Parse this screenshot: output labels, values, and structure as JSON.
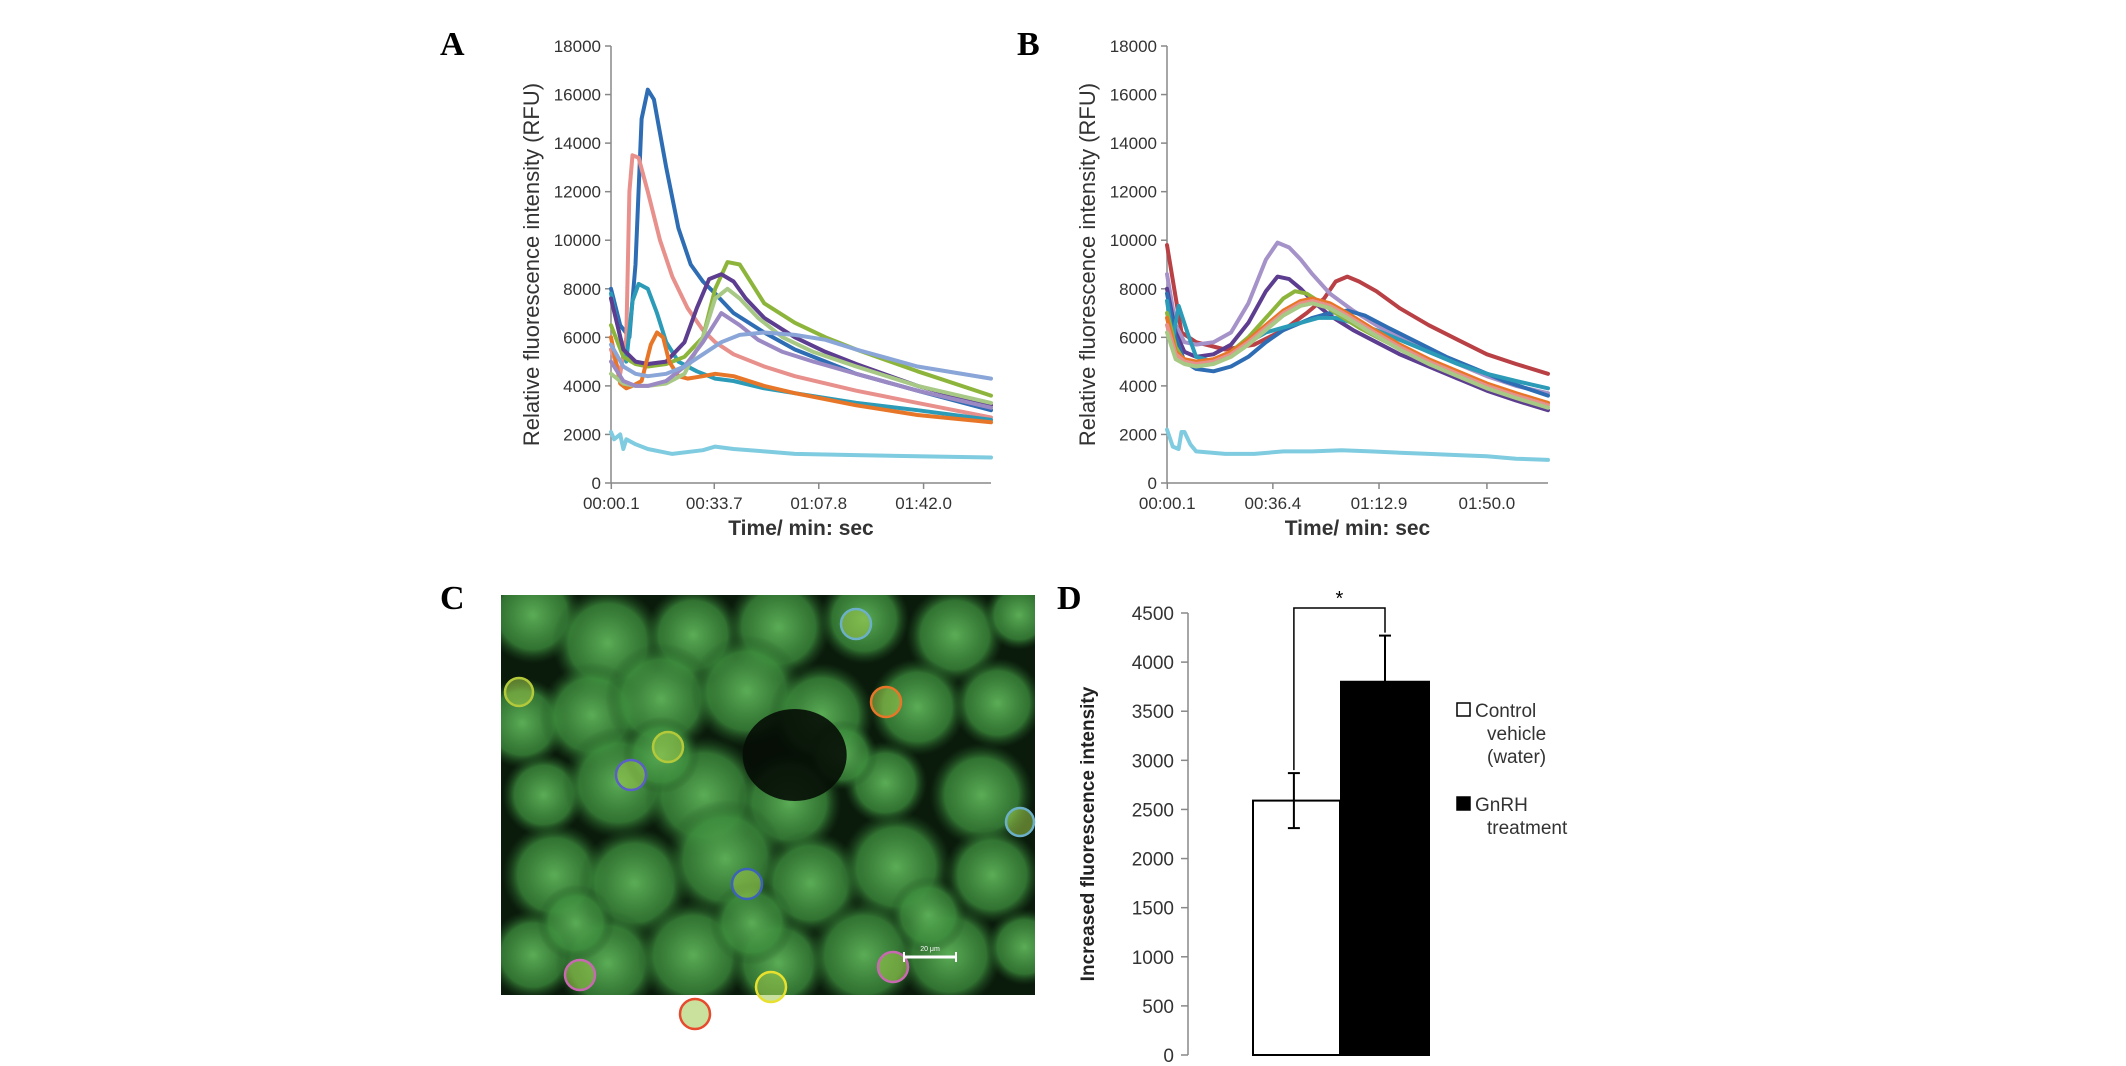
{
  "panels": {
    "a": "A",
    "b": "B",
    "c": "C",
    "d": "D"
  },
  "chart_data": [
    {
      "panel": "A",
      "type": "line",
      "ylabel": "Relative fluorescence intensity (RFU)",
      "xlabel": "Time/ min: sec",
      "ylim": [
        0,
        18000
      ],
      "yticks": [
        0,
        2000,
        4000,
        6000,
        8000,
        10000,
        12000,
        14000,
        16000,
        18000
      ],
      "xlim": [
        0,
        124
      ],
      "xtick_values": [
        0.1,
        33.7,
        67.8,
        102.0
      ],
      "xtick_labels": [
        "00:00.1",
        "00:33.7",
        "01:07.8",
        "01:42.0"
      ],
      "grid": false,
      "series": [
        {
          "color": "#2e6db4",
          "x": [
            0,
            3,
            6,
            8,
            10,
            12,
            14,
            18,
            22,
            26,
            30,
            34,
            40,
            50,
            60,
            70,
            80,
            100,
            124
          ],
          "y": [
            8000,
            6500,
            6000,
            9000,
            15000,
            16200,
            15800,
            13000,
            10500,
            9000,
            8300,
            7800,
            7000,
            6200,
            5500,
            5000,
            4500,
            3800,
            3000
          ]
        },
        {
          "color": "#e8908c",
          "x": [
            0,
            3,
            5,
            6,
            7,
            9,
            12,
            16,
            20,
            25,
            30,
            34,
            40,
            50,
            60,
            80,
            100,
            124
          ],
          "y": [
            5500,
            4500,
            6000,
            12000,
            13500,
            13400,
            12000,
            10000,
            8500,
            7200,
            6300,
            5800,
            5300,
            4800,
            4400,
            3800,
            3300,
            2700
          ]
        },
        {
          "color": "#2b9bb8",
          "x": [
            0,
            3,
            5,
            7,
            9,
            12,
            15,
            18,
            22,
            28,
            34,
            40,
            50,
            60,
            80,
            100,
            124
          ],
          "y": [
            7800,
            6000,
            5000,
            7500,
            8200,
            8000,
            7000,
            5800,
            5000,
            4600,
            4300,
            4200,
            3900,
            3700,
            3300,
            3000,
            2600
          ]
        },
        {
          "color": "#8db53c",
          "x": [
            0,
            4,
            8,
            12,
            18,
            24,
            30,
            34,
            38,
            42,
            46,
            50,
            60,
            70,
            80,
            100,
            124
          ],
          "y": [
            6500,
            5200,
            4900,
            4800,
            4900,
            5200,
            6000,
            8000,
            9100,
            9000,
            8200,
            7400,
            6600,
            6000,
            5500,
            4600,
            3600
          ]
        },
        {
          "color": "#5c3d8f",
          "x": [
            0,
            4,
            8,
            12,
            18,
            24,
            28,
            32,
            36,
            40,
            44,
            50,
            60,
            70,
            80,
            100,
            124
          ],
          "y": [
            7600,
            5500,
            5000,
            4900,
            5000,
            5800,
            7200,
            8400,
            8600,
            8300,
            7600,
            6800,
            6000,
            5400,
            4900,
            4000,
            3200
          ]
        },
        {
          "color": "#e87628",
          "x": [
            0,
            3,
            5,
            7,
            10,
            13,
            15,
            17,
            19,
            22,
            25,
            30,
            34,
            40,
            50,
            60,
            80,
            100,
            124
          ],
          "y": [
            6000,
            4100,
            3900,
            4000,
            4200,
            5700,
            6200,
            6000,
            5000,
            4400,
            4300,
            4400,
            4500,
            4400,
            4000,
            3700,
            3200,
            2800,
            2500
          ]
        },
        {
          "color": "#a7c985",
          "x": [
            0,
            4,
            8,
            12,
            18,
            24,
            30,
            34,
            38,
            42,
            48,
            56,
            66,
            80,
            100,
            124
          ],
          "y": [
            4500,
            4100,
            4000,
            4000,
            4100,
            4500,
            6000,
            7600,
            8000,
            7600,
            6800,
            6000,
            5400,
            4800,
            4000,
            3300
          ]
        },
        {
          "color": "#9b89c4",
          "x": [
            0,
            4,
            8,
            12,
            18,
            24,
            30,
            36,
            42,
            48,
            56,
            66,
            80,
            100,
            124
          ],
          "y": [
            5000,
            4200,
            4000,
            4000,
            4200,
            4800,
            5800,
            7000,
            6500,
            5900,
            5400,
            5000,
            4500,
            3800,
            3100
          ]
        },
        {
          "color": "#8aa5d8",
          "x": [
            0,
            4,
            8,
            12,
            18,
            24,
            30,
            36,
            42,
            50,
            60,
            70,
            80,
            100,
            124
          ],
          "y": [
            5700,
            4800,
            4500,
            4400,
            4500,
            4800,
            5300,
            5800,
            6100,
            6200,
            6100,
            5900,
            5500,
            4800,
            4300
          ]
        },
        {
          "color": "#7fcbe0",
          "x": [
            0,
            1,
            3,
            4,
            5,
            8,
            12,
            20,
            30,
            34,
            40,
            50,
            60,
            80,
            100,
            124
          ],
          "y": [
            2100,
            1800,
            2000,
            1400,
            1800,
            1600,
            1400,
            1200,
            1350,
            1500,
            1400,
            1300,
            1200,
            1150,
            1100,
            1050
          ]
        }
      ]
    },
    {
      "panel": "B",
      "type": "line",
      "ylabel": "Relative fluorescence intensity (RFU)",
      "xlabel": "Time/ min: sec",
      "ylim": [
        0,
        18000
      ],
      "yticks": [
        0,
        2000,
        4000,
        6000,
        8000,
        10000,
        12000,
        14000,
        16000,
        18000
      ],
      "xlim": [
        0,
        131
      ],
      "xtick_values": [
        0.1,
        36.4,
        72.9,
        110.0
      ],
      "xtick_labels": [
        "00:00.1",
        "00:36.4",
        "01:12.9",
        "01:50.0"
      ],
      "grid": false,
      "series": [
        {
          "color": "#b94045",
          "x": [
            0,
            5,
            10,
            20,
            30,
            40,
            48,
            54,
            58,
            62,
            66,
            72,
            80,
            90,
            100,
            110,
            120,
            131
          ],
          "y": [
            9800,
            6200,
            5800,
            5500,
            5700,
            6300,
            7000,
            7600,
            8300,
            8500,
            8300,
            7900,
            7200,
            6500,
            5900,
            5300,
            4900,
            4500
          ]
        },
        {
          "color": "#a492c9",
          "x": [
            0,
            3,
            6,
            10,
            16,
            22,
            28,
            34,
            38,
            42,
            46,
            50,
            56,
            64,
            72,
            80,
            90,
            100,
            110,
            120,
            131
          ],
          "y": [
            8600,
            6500,
            5800,
            5700,
            5800,
            6200,
            7400,
            9200,
            9900,
            9700,
            9200,
            8600,
            7800,
            7100,
            6500,
            6000,
            5400,
            4900,
            4400,
            4000,
            3700
          ]
        },
        {
          "color": "#5c3d8f",
          "x": [
            0,
            3,
            6,
            10,
            16,
            22,
            28,
            34,
            38,
            42,
            46,
            50,
            56,
            64,
            72,
            80,
            90,
            100,
            110,
            120,
            131
          ],
          "y": [
            8000,
            6200,
            5400,
            5200,
            5300,
            5700,
            6600,
            7900,
            8500,
            8400,
            8000,
            7500,
            6900,
            6300,
            5800,
            5300,
            4800,
            4300,
            3800,
            3400,
            3000
          ]
        },
        {
          "color": "#2e6db4",
          "x": [
            0,
            3,
            6,
            10,
            16,
            22,
            28,
            34,
            40,
            46,
            50,
            56,
            62,
            68,
            76,
            86,
            96,
            106,
            116,
            131
          ],
          "y": [
            7800,
            6000,
            5000,
            4700,
            4600,
            4800,
            5200,
            5800,
            6300,
            6600,
            6800,
            7000,
            7100,
            6900,
            6400,
            5800,
            5200,
            4700,
            4200,
            3600
          ]
        },
        {
          "color": "#2b9bb8",
          "x": [
            0,
            2,
            4,
            7,
            10,
            16,
            22,
            28,
            34,
            40,
            46,
            52,
            58,
            64,
            72,
            80,
            90,
            100,
            110,
            120,
            131
          ],
          "y": [
            7500,
            5900,
            7300,
            6200,
            5200,
            5000,
            5300,
            5800,
            6200,
            6400,
            6600,
            6800,
            6800,
            6600,
            6300,
            5900,
            5400,
            4900,
            4500,
            4200,
            3900
          ]
        },
        {
          "color": "#8db53c",
          "x": [
            0,
            3,
            6,
            10,
            16,
            22,
            28,
            34,
            40,
            44,
            48,
            52,
            58,
            66,
            74,
            82,
            92,
            102,
            112,
            122,
            131
          ],
          "y": [
            7000,
            5600,
            5000,
            4900,
            5000,
            5400,
            6000,
            6800,
            7600,
            7900,
            7800,
            7500,
            7000,
            6400,
            5900,
            5400,
            4900,
            4400,
            4000,
            3600,
            3300
          ]
        },
        {
          "color": "#e87628",
          "x": [
            0,
            3,
            6,
            10,
            16,
            22,
            28,
            34,
            40,
            46,
            50,
            56,
            62,
            70,
            80,
            90,
            100,
            110,
            120,
            131
          ],
          "y": [
            6800,
            5400,
            5100,
            5000,
            5100,
            5400,
            5900,
            6500,
            7100,
            7500,
            7600,
            7400,
            7000,
            6400,
            5700,
            5100,
            4600,
            4100,
            3700,
            3300
          ]
        },
        {
          "color": "#e8908c",
          "x": [
            0,
            3,
            6,
            10,
            16,
            22,
            28,
            34,
            40,
            46,
            50,
            56,
            62,
            70,
            80,
            90,
            100,
            110,
            120,
            131
          ],
          "y": [
            6500,
            5300,
            5000,
            4900,
            5000,
            5300,
            5800,
            6400,
            7000,
            7400,
            7500,
            7300,
            6900,
            6300,
            5600,
            5000,
            4500,
            4000,
            3600,
            3200
          ]
        },
        {
          "color": "#a7c985",
          "x": [
            0,
            3,
            6,
            10,
            16,
            22,
            28,
            34,
            40,
            46,
            50,
            56,
            62,
            70,
            80,
            90,
            100,
            110,
            120,
            131
          ],
          "y": [
            6200,
            5100,
            4900,
            4800,
            4900,
            5200,
            5700,
            6300,
            6900,
            7300,
            7400,
            7200,
            6800,
            6200,
            5500,
            4900,
            4400,
            3900,
            3500,
            3100
          ]
        },
        {
          "color": "#7fcbe0",
          "x": [
            0,
            2,
            4,
            5,
            6,
            8,
            10,
            20,
            30,
            40,
            50,
            60,
            70,
            80,
            90,
            100,
            110,
            120,
            131
          ],
          "y": [
            2200,
            1500,
            1400,
            2100,
            2100,
            1600,
            1300,
            1200,
            1200,
            1300,
            1300,
            1350,
            1300,
            1250,
            1200,
            1150,
            1100,
            1000,
            950
          ]
        }
      ]
    },
    {
      "panel": "D",
      "type": "bar",
      "ylabel": "Increased fluorescence intensity",
      "ylim": [
        0,
        4500
      ],
      "yticks": [
        0,
        500,
        1000,
        1500,
        2000,
        2500,
        3000,
        3500,
        4000,
        4500
      ],
      "categories": [
        "Control vehicle (water)",
        "GnRH treatment"
      ],
      "values": [
        2590,
        3800
      ],
      "errors": [
        280,
        470
      ],
      "bar_colors": [
        "#ffffff",
        "#000000"
      ],
      "significance": "*",
      "legend": [
        {
          "lines": [
            "Control",
            "vehicle",
            "(water)"
          ],
          "swatch": "#ffffff"
        },
        {
          "lines": [
            "GnRH",
            "treatment"
          ],
          "swatch": "#000000"
        }
      ],
      "legend_position": "right"
    }
  ],
  "micrograph": {
    "scale_bar_label": "20 μm",
    "roi_colors": [
      "#d9a93a",
      "#d0a040",
      "#5b5fc7",
      "#6bb0c8",
      "#e87628",
      "#b4c93a",
      "#3d63b8",
      "#c868b0",
      "#e84a2e",
      "#e8e02e",
      "#c868b0",
      "#8fa8a8"
    ]
  }
}
